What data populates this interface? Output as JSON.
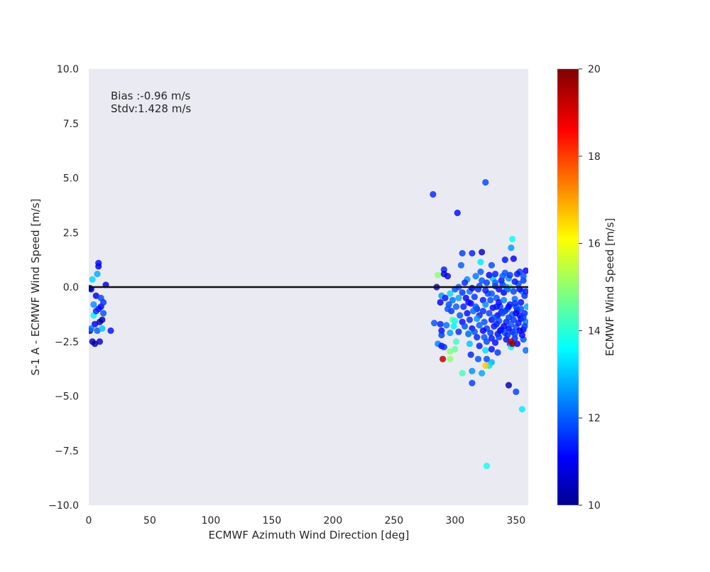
{
  "chart_data": {
    "type": "scatter",
    "title": "",
    "xlabel": "ECMWF Azimuth Wind Direction [deg]",
    "ylabel": "S-1 A - ECMWF Wind Speed [m/s]",
    "xlim": [
      0,
      360
    ],
    "ylim": [
      -10,
      10
    ],
    "x_ticks": [
      "0",
      "50",
      "100",
      "150",
      "200",
      "250",
      "300",
      "350"
    ],
    "x_tick_values": [
      0,
      50,
      100,
      150,
      200,
      250,
      300,
      350
    ],
    "y_ticks": [
      "10.0",
      "7.5",
      "5.0",
      "2.5",
      "0.0",
      "−2.5",
      "−5.0",
      "−7.5",
      "−10.0"
    ],
    "y_tick_values": [
      10,
      7.5,
      5,
      2.5,
      0,
      -2.5,
      -5,
      -7.5,
      -10
    ],
    "annotations": [
      "Bias :-0.96 m/s",
      "Stdv:1.428 m/s"
    ],
    "reference_line_y": 0,
    "grid": false,
    "plot_background": "#eaeaf2",
    "colormap": "jet",
    "colorbar": {
      "label": "ECMWF Wind Speed [m/s]",
      "range": [
        10,
        20
      ],
      "ticks": [
        "10",
        "12",
        "14",
        "16",
        "18",
        "20"
      ],
      "tick_values": [
        10,
        12,
        14,
        16,
        18,
        20
      ]
    },
    "points": [
      [
        1,
        -2.0,
        10.5
      ],
      [
        2,
        -0.1,
        11.0
      ],
      [
        3,
        0.35,
        13.2
      ],
      [
        3,
        -2.5,
        10.3
      ],
      [
        4,
        -0.8,
        12.5
      ],
      [
        4,
        -1.3,
        13.5
      ],
      [
        5,
        -2.6,
        10.2
      ],
      [
        5,
        -1.7,
        11.0
      ],
      [
        6,
        -0.4,
        10.8
      ],
      [
        6,
        -1.1,
        11.5
      ],
      [
        7,
        0.6,
        12.8
      ],
      [
        7,
        -2.0,
        12.0
      ],
      [
        8,
        0.95,
        10.9
      ],
      [
        8,
        1.1,
        11.2
      ],
      [
        8,
        -1.0,
        11.4
      ],
      [
        9,
        -1.6,
        10.4
      ],
      [
        9,
        -2.5,
        10.6
      ],
      [
        10,
        -0.5,
        11.8
      ],
      [
        10,
        -0.9,
        11.0
      ],
      [
        11,
        -1.5,
        10.2
      ],
      [
        11,
        -1.9,
        13.0
      ],
      [
        12,
        -0.7,
        11.6
      ],
      [
        12,
        -1.2,
        11.9
      ],
      [
        14,
        0.1,
        10.7
      ],
      [
        18,
        -2.0,
        11.3
      ],
      [
        2,
        -1.9,
        12.3
      ],
      [
        1,
        -0.05,
        10.1
      ],
      [
        282,
        4.25,
        11.5
      ],
      [
        325,
        4.8,
        11.8
      ],
      [
        302,
        3.4,
        11.2
      ],
      [
        347,
        2.2,
        13.6
      ],
      [
        346,
        1.8,
        12.6
      ],
      [
        322,
        1.6,
        10.5
      ],
      [
        306,
        1.55,
        11.7
      ],
      [
        314,
        1.55,
        11.4
      ],
      [
        348,
        1.3,
        11.0
      ],
      [
        341,
        1.25,
        11.3
      ],
      [
        321,
        1.15,
        13.4
      ],
      [
        330,
        1.0,
        11.8
      ],
      [
        305,
        1.0,
        12.0
      ],
      [
        291,
        0.8,
        11.4
      ],
      [
        353,
        0.7,
        11.6
      ],
      [
        358,
        0.75,
        11.1
      ],
      [
        321,
        0.7,
        12.0
      ],
      [
        286,
        0.55,
        15.0
      ],
      [
        294,
        0.5,
        11.0
      ],
      [
        291,
        0.6,
        10.8
      ],
      [
        341,
        0.65,
        11.9
      ],
      [
        344,
        0.4,
        12.5
      ],
      [
        331,
        0.4,
        13.0
      ],
      [
        310,
        0.35,
        12.5
      ],
      [
        326,
        0.2,
        11.7
      ],
      [
        338,
        0.3,
        11.2
      ],
      [
        352,
        0.15,
        11.8
      ],
      [
        285,
        0.0,
        10.3
      ],
      [
        333,
        0.05,
        11.4
      ],
      [
        300,
        -0.1,
        11.9
      ],
      [
        319,
        -0.1,
        11.5
      ],
      [
        345,
        0.0,
        14.5
      ],
      [
        312,
        -0.2,
        12.2
      ],
      [
        327,
        -0.3,
        11.8
      ],
      [
        340,
        -0.25,
        11.0
      ],
      [
        355,
        -0.2,
        12.4
      ],
      [
        289,
        -0.4,
        12.6
      ],
      [
        296,
        -0.3,
        13.2
      ],
      [
        303,
        -0.5,
        12.7
      ],
      [
        309,
        -0.5,
        11.1
      ],
      [
        316,
        -0.45,
        11.6
      ],
      [
        323,
        -0.6,
        11.3
      ],
      [
        334,
        -0.5,
        11.9
      ],
      [
        349,
        -0.55,
        12.1
      ],
      [
        357,
        -0.4,
        11.5
      ],
      [
        288,
        -0.7,
        11.0
      ],
      [
        295,
        -0.8,
        11.8
      ],
      [
        301,
        -0.9,
        12.0
      ],
      [
        307,
        -0.9,
        11.4
      ],
      [
        313,
        -0.75,
        11.0
      ],
      [
        318,
        -1.0,
        11.3
      ],
      [
        325,
        -0.8,
        12.5
      ],
      [
        331,
        -0.95,
        11.1
      ],
      [
        337,
        -0.9,
        11.7
      ],
      [
        343,
        -1.0,
        12.2
      ],
      [
        351,
        -1.05,
        11.0
      ],
      [
        359,
        -0.9,
        12.8
      ],
      [
        297,
        -1.1,
        11.6
      ],
      [
        304,
        -1.3,
        11.9
      ],
      [
        310,
        -1.2,
        11.2
      ],
      [
        315,
        -1.1,
        12.1
      ],
      [
        320,
        -1.3,
        11.4
      ],
      [
        328,
        -1.2,
        11.7
      ],
      [
        335,
        -1.3,
        11.0
      ],
      [
        341,
        -1.1,
        11.5
      ],
      [
        347,
        -1.25,
        11.9
      ],
      [
        353,
        -1.3,
        11.3
      ],
      [
        298,
        -1.5,
        14.5
      ],
      [
        300,
        -1.55,
        13.8
      ],
      [
        306,
        -1.6,
        11.2
      ],
      [
        312,
        -1.5,
        11.5
      ],
      [
        318,
        -1.45,
        12.6
      ],
      [
        324,
        -1.6,
        11.9
      ],
      [
        330,
        -1.5,
        11.1
      ],
      [
        336,
        -1.55,
        11.8
      ],
      [
        342,
        -1.6,
        11.4
      ],
      [
        348,
        -1.5,
        11.6
      ],
      [
        354,
        -1.45,
        11.0
      ],
      [
        358,
        -1.6,
        12.3
      ],
      [
        283,
        -1.65,
        11.9
      ],
      [
        288,
        -1.7,
        11.4
      ],
      [
        293,
        -1.75,
        12.2
      ],
      [
        299,
        -1.8,
        13.5
      ],
      [
        308,
        -1.8,
        11.9
      ],
      [
        314,
        -1.9,
        11.2
      ],
      [
        320,
        -1.75,
        12.0
      ],
      [
        326,
        -1.9,
        11.6
      ],
      [
        332,
        -1.8,
        11.3
      ],
      [
        338,
        -1.95,
        11.7
      ],
      [
        344,
        -1.9,
        11.1
      ],
      [
        350,
        -1.85,
        11.8
      ],
      [
        356,
        -1.95,
        11.0
      ],
      [
        289,
        -2.0,
        11.2
      ],
      [
        296,
        -2.1,
        12.6
      ],
      [
        303,
        -2.05,
        11.5
      ],
      [
        311,
        -2.1,
        14.8
      ],
      [
        316,
        -2.05,
        11.9
      ],
      [
        323,
        -2.0,
        11.0
      ],
      [
        329,
        -2.1,
        11.6
      ],
      [
        335,
        -2.15,
        11.2
      ],
      [
        341,
        -2.1,
        11.8
      ],
      [
        347,
        -2.05,
        11.4
      ],
      [
        353,
        -2.0,
        11.0
      ],
      [
        289,
        -2.2,
        11.7
      ],
      [
        311,
        -2.15,
        12.1
      ],
      [
        318,
        -2.3,
        11.4
      ],
      [
        324,
        -2.3,
        11.9
      ],
      [
        330,
        -2.35,
        11.3
      ],
      [
        336,
        -2.3,
        11.7
      ],
      [
        342,
        -2.4,
        11.1
      ],
      [
        349,
        -2.35,
        11.5
      ],
      [
        301,
        -2.5,
        14.2
      ],
      [
        312,
        -2.6,
        13.0
      ],
      [
        320,
        -2.7,
        11.3
      ],
      [
        326,
        -2.5,
        11.8
      ],
      [
        333,
        -2.55,
        11.2
      ],
      [
        345,
        -2.6,
        11.6
      ],
      [
        351,
        -2.6,
        11.0
      ],
      [
        356,
        -2.4,
        11.9
      ],
      [
        286,
        -2.6,
        12.4
      ],
      [
        289,
        -2.7,
        11.1
      ],
      [
        291,
        -2.75,
        11.6
      ],
      [
        296,
        -2.95,
        14.9
      ],
      [
        300,
        -2.85,
        14.6
      ],
      [
        313,
        -3.1,
        11.4
      ],
      [
        319,
        -3.3,
        11.9
      ],
      [
        325,
        -2.9,
        13.3
      ],
      [
        330,
        -2.85,
        11.2
      ],
      [
        335,
        -3.0,
        11.6
      ],
      [
        296,
        -3.3,
        15.0
      ],
      [
        290,
        -3.3,
        19.4
      ],
      [
        326,
        -3.3,
        11.8
      ],
      [
        330,
        -3.45,
        12.8
      ],
      [
        328,
        -3.6,
        13.3
      ],
      [
        325,
        -3.6,
        16.6
      ],
      [
        358,
        -2.9,
        12.2
      ],
      [
        346,
        -2.75,
        13.5
      ],
      [
        347,
        -2.6,
        20.0
      ],
      [
        346,
        -2.5,
        19.5
      ],
      [
        306,
        -3.95,
        14.3
      ],
      [
        314,
        -3.85,
        12.5
      ],
      [
        322,
        -3.95,
        12.7
      ],
      [
        314,
        -4.4,
        11.7
      ],
      [
        344,
        -4.5,
        10.3
      ],
      [
        350,
        -4.8,
        11.7
      ],
      [
        355,
        -5.6,
        13.4
      ],
      [
        326,
        -8.2,
        13.8
      ],
      [
        333,
        0.2,
        12.0
      ],
      [
        339,
        0.1,
        11.6
      ],
      [
        343,
        -0.1,
        11.9
      ],
      [
        349,
        0.25,
        11.3
      ],
      [
        356,
        0.3,
        11.7
      ],
      [
        358,
        -0.2,
        11.4
      ],
      [
        336,
        -0.7,
        11.1
      ],
      [
        340,
        -0.6,
        12.3
      ],
      [
        345,
        -0.8,
        11.5
      ],
      [
        350,
        -0.9,
        11.8
      ],
      [
        354,
        -0.7,
        11.2
      ],
      [
        357,
        -1.2,
        11.5
      ],
      [
        332,
        -1.4,
        11.9
      ],
      [
        338,
        -1.15,
        11.3
      ],
      [
        344,
        -1.4,
        11.6
      ],
      [
        350,
        -1.2,
        11.0
      ],
      [
        356,
        -1.4,
        11.7
      ],
      [
        334,
        -1.7,
        11.4
      ],
      [
        340,
        -1.8,
        11.1
      ],
      [
        346,
        -1.7,
        11.9
      ],
      [
        352,
        -1.65,
        11.3
      ],
      [
        357,
        -1.8,
        11.6
      ],
      [
        337,
        -2.0,
        11.2
      ],
      [
        343,
        -2.2,
        11.5
      ],
      [
        349,
        -2.15,
        11.8
      ],
      [
        355,
        -2.2,
        11.1
      ],
      [
        317,
        0.5,
        12.3
      ],
      [
        322,
        0.3,
        11.9
      ],
      [
        328,
        0.55,
        11.0
      ],
      [
        333,
        0.6,
        11.4
      ],
      [
        339,
        0.5,
        12.0
      ],
      [
        345,
        0.55,
        11.6
      ],
      [
        351,
        0.6,
        11.3
      ],
      [
        356,
        0.5,
        11.9
      ],
      [
        303,
        0.0,
        12.0
      ],
      [
        308,
        0.2,
        11.5
      ],
      [
        314,
        -0.05,
        11.1
      ],
      [
        320,
        0.05,
        11.8
      ],
      [
        325,
        -0.15,
        11.4
      ],
      [
        330,
        -0.3,
        11.9
      ],
      [
        336,
        -0.1,
        11.0
      ],
      [
        342,
        0.0,
        12.4
      ],
      [
        348,
        -0.2,
        11.7
      ],
      [
        353,
        -0.1,
        11.1
      ],
      [
        292,
        -0.5,
        11.3
      ],
      [
        294,
        -1.0,
        11.9
      ],
      [
        298,
        -0.6,
        12.2
      ],
      [
        306,
        -0.25,
        11.6
      ],
      [
        311,
        -0.7,
        11.2
      ],
      [
        317,
        -0.9,
        12.0
      ],
      [
        323,
        -1.1,
        11.5
      ],
      [
        329,
        -0.6,
        11.8
      ],
      [
        334,
        -0.9,
        11.3
      ],
      [
        339,
        -1.2,
        11.9
      ],
      [
        344,
        -0.9,
        11.2
      ],
      [
        349,
        -0.75,
        11.6
      ],
      [
        354,
        -1.0,
        11.9
      ]
    ]
  }
}
